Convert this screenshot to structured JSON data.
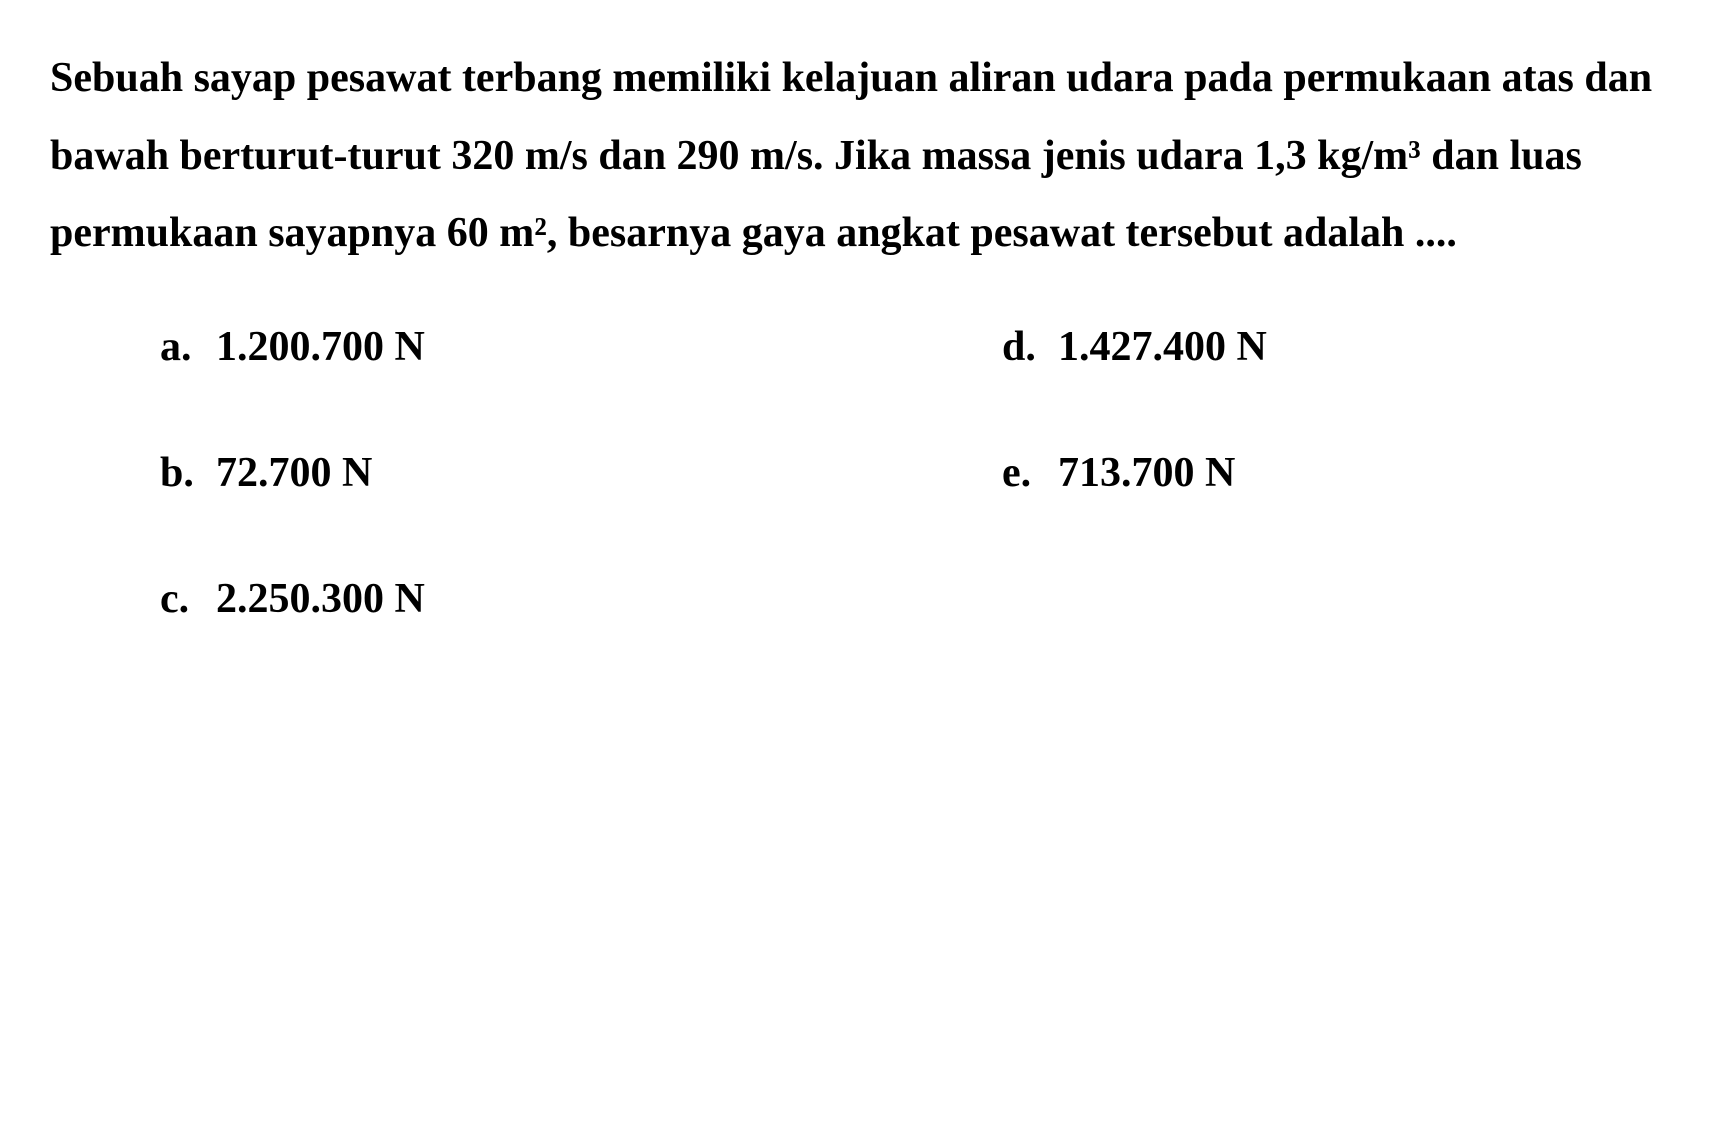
{
  "question": {
    "text": "Sebuah sayap pesawat terbang memiliki kelajuan aliran udara pada permukaan atas dan bawah berturut-turut 320 m/s dan 290 m/s. Jika massa jenis udara 1,3 kg/m³ dan luas permukaan sayapnya 60 m², besarnya gaya angkat pesawat tersebut adalah ...."
  },
  "options": {
    "a": {
      "letter": "a.",
      "value": "1.200.700 N"
    },
    "b": {
      "letter": "b.",
      "value": "72.700 N"
    },
    "c": {
      "letter": "c.",
      "value": "2.250.300 N"
    },
    "d": {
      "letter": "d.",
      "value": "1.427.400 N"
    },
    "e": {
      "letter": "e.",
      "value": "713.700 N"
    }
  },
  "styling": {
    "background_color": "#ffffff",
    "text_color": "#000000",
    "font_family": "Georgia, Times New Roman, serif",
    "question_fontsize": 42,
    "option_fontsize": 42,
    "font_weight": "bold",
    "line_height": 1.85
  }
}
